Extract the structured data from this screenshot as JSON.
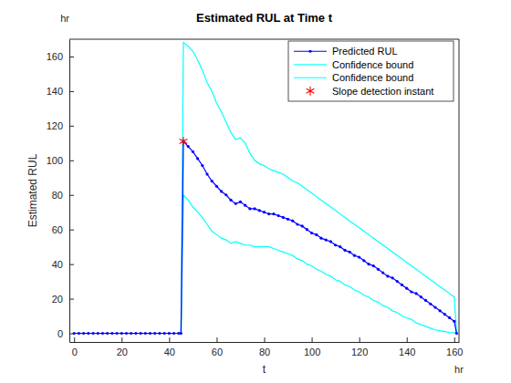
{
  "chart_data": {
    "type": "line",
    "title": "Estimated RUL at Time t",
    "xlabel": "t",
    "ylabel": "Estimated RUL",
    "x_unit": "hr",
    "y_unit": "hr",
    "xlim": [
      -2,
      162
    ],
    "ylim": [
      -5,
      170
    ],
    "xticks": [
      0,
      20,
      40,
      60,
      80,
      100,
      120,
      140,
      160
    ],
    "yticks": [
      0,
      20,
      40,
      60,
      80,
      100,
      120,
      140,
      160
    ],
    "grid": false,
    "legend": "northeast",
    "x": [
      0,
      2,
      4,
      6,
      8,
      10,
      12,
      14,
      16,
      18,
      20,
      22,
      24,
      26,
      28,
      30,
      32,
      34,
      36,
      38,
      40,
      42,
      44,
      45,
      46,
      48,
      50,
      52,
      54,
      56,
      58,
      60,
      62,
      64,
      66,
      68,
      70,
      72,
      74,
      76,
      78,
      80,
      82,
      84,
      86,
      88,
      90,
      92,
      94,
      96,
      98,
      100,
      102,
      104,
      106,
      108,
      110,
      112,
      114,
      116,
      118,
      120,
      122,
      124,
      126,
      128,
      130,
      132,
      134,
      136,
      138,
      140,
      142,
      144,
      146,
      148,
      150,
      152,
      154,
      156,
      158,
      160,
      161
    ],
    "series": [
      {
        "name": "Predicted RUL",
        "color": "#0000ff",
        "type": "line",
        "marker": "dot",
        "line_style": "solid",
        "values": [
          0,
          0,
          0,
          0,
          0,
          0,
          0,
          0,
          0,
          0,
          0,
          0,
          0,
          0,
          0,
          0,
          0,
          0,
          0,
          0,
          0,
          0,
          0,
          0,
          111,
          108,
          105,
          101,
          97,
          92,
          88,
          85,
          82,
          80,
          77,
          75,
          76,
          74,
          72,
          72,
          71,
          70,
          69,
          69,
          68,
          67,
          66,
          65,
          63,
          62,
          60,
          58,
          57,
          55,
          54,
          53,
          51,
          50,
          48,
          47,
          45,
          44,
          42,
          40,
          39,
          37,
          35,
          33,
          32,
          30,
          28,
          26,
          24,
          23,
          21,
          19,
          17,
          15,
          13,
          11,
          9,
          7,
          0
        ]
      },
      {
        "name": "Confidence bound",
        "color": "#00ffff",
        "type": "line",
        "marker": "none",
        "line_style": "solid",
        "values": [
          0,
          0,
          0,
          0,
          0,
          0,
          0,
          0,
          0,
          0,
          0,
          0,
          0,
          0,
          0,
          0,
          0,
          0,
          0,
          0,
          0,
          0,
          0,
          0,
          168,
          166,
          163,
          158,
          152,
          145,
          140,
          133,
          128,
          122,
          116,
          112,
          113,
          110,
          104,
          100,
          98,
          97,
          95,
          94,
          93,
          92,
          90,
          88,
          87,
          85,
          83,
          81,
          79,
          77,
          75,
          73,
          71,
          69,
          67,
          65,
          63,
          61,
          59,
          57,
          55,
          53,
          51,
          49,
          47,
          45,
          43,
          41,
          39,
          37,
          35,
          33,
          31,
          29,
          27,
          25,
          23,
          21,
          0
        ]
      },
      {
        "name": "Confidence bound",
        "color": "#00ffff",
        "type": "line",
        "marker": "none",
        "line_style": "solid",
        "values": [
          0,
          0,
          0,
          0,
          0,
          0,
          0,
          0,
          0,
          0,
          0,
          0,
          0,
          0,
          0,
          0,
          0,
          0,
          0,
          0,
          0,
          0,
          0,
          0,
          80,
          77,
          73,
          70,
          67,
          63,
          59,
          57,
          55,
          54,
          52,
          53,
          52,
          51,
          51,
          50,
          50,
          50,
          50,
          49,
          48,
          47,
          46,
          45,
          43,
          42,
          40,
          39,
          37,
          36,
          34,
          33,
          31,
          30,
          28,
          27,
          25,
          24,
          22,
          21,
          19,
          18,
          16,
          15,
          13,
          12,
          10,
          9,
          8,
          6,
          5,
          4,
          3,
          2,
          1.5,
          1,
          0.5,
          0.3,
          0
        ]
      },
      {
        "name": "Slope detection instant",
        "color": "#ff0000",
        "type": "scatter",
        "marker": "asterisk",
        "line_style": "none",
        "x": [
          46
        ],
        "values": [
          111
        ]
      }
    ]
  }
}
